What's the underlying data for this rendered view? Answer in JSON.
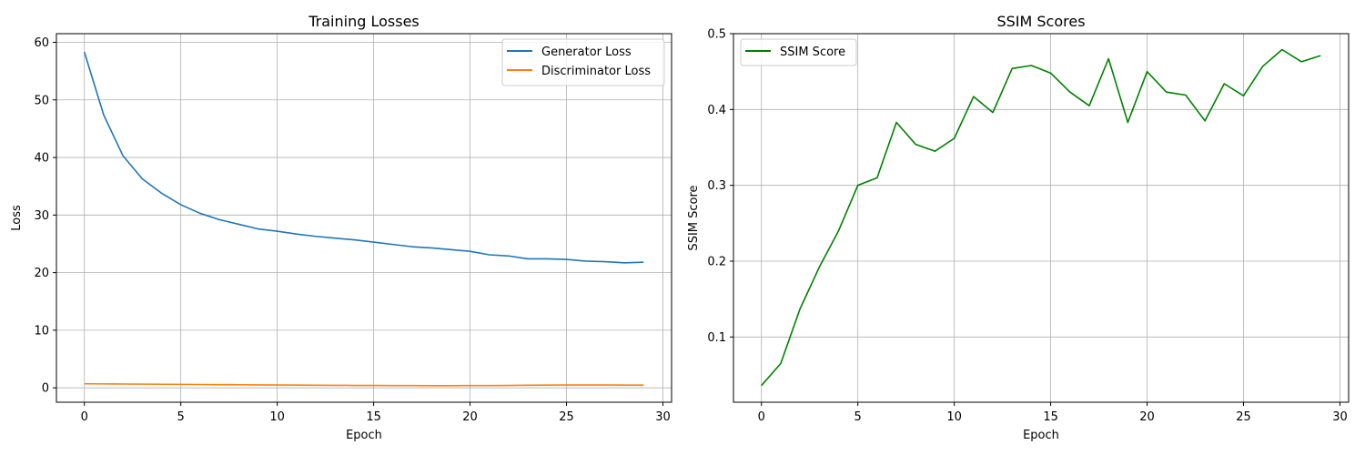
{
  "chart_data": [
    {
      "type": "line",
      "title": "Training Losses",
      "xlabel": "Epoch",
      "ylabel": "Loss",
      "xlim": [
        -1.45,
        30.45
      ],
      "ylim": [
        -2.5,
        61.5
      ],
      "xticks": [
        0,
        5,
        10,
        15,
        20,
        25,
        30
      ],
      "yticks": [
        0,
        10,
        20,
        30,
        40,
        50,
        60
      ],
      "grid": true,
      "legend_position": "top-right",
      "x": [
        0,
        1,
        2,
        3,
        4,
        5,
        6,
        7,
        8,
        9,
        10,
        11,
        12,
        13,
        14,
        15,
        16,
        17,
        18,
        19,
        20,
        21,
        22,
        23,
        24,
        25,
        26,
        27,
        28,
        29
      ],
      "series": [
        {
          "name": "Generator Loss",
          "color": "#1f77b4",
          "values": [
            58.3,
            47.4,
            40.3,
            36.3,
            33.8,
            31.8,
            30.3,
            29.2,
            28.4,
            27.6,
            27.2,
            26.7,
            26.3,
            26.0,
            25.7,
            25.3,
            24.9,
            24.5,
            24.3,
            24.0,
            23.7,
            23.1,
            22.9,
            22.4,
            22.4,
            22.3,
            22.0,
            21.9,
            21.7,
            21.8
          ]
        },
        {
          "name": "Discriminator Loss",
          "color": "#ff7f0e",
          "values": [
            0.7,
            0.68,
            0.66,
            0.64,
            0.62,
            0.6,
            0.58,
            0.56,
            0.54,
            0.52,
            0.5,
            0.48,
            0.46,
            0.44,
            0.42,
            0.41,
            0.4,
            0.39,
            0.38,
            0.38,
            0.39,
            0.4,
            0.42,
            0.45,
            0.48,
            0.5,
            0.5,
            0.49,
            0.48,
            0.47
          ]
        }
      ]
    },
    {
      "type": "line",
      "title": "SSIM Scores",
      "xlabel": "Epoch",
      "ylabel": "SSIM Score",
      "xlim": [
        -1.45,
        30.45
      ],
      "ylim": [
        0.014,
        0.5
      ],
      "xticks": [
        0,
        5,
        10,
        15,
        20,
        25,
        30
      ],
      "yticks": [
        0.1,
        0.2,
        0.3,
        0.4,
        0.5
      ],
      "grid": true,
      "legend_position": "top-left",
      "x": [
        0,
        1,
        2,
        3,
        4,
        5,
        6,
        7,
        8,
        9,
        10,
        11,
        12,
        13,
        14,
        15,
        16,
        17,
        18,
        19,
        20,
        21,
        22,
        23,
        24,
        25,
        26,
        27,
        28,
        29
      ],
      "series": [
        {
          "name": "SSIM Score",
          "color": "#008000",
          "values": [
            0.036,
            0.065,
            0.137,
            0.192,
            0.24,
            0.3,
            0.31,
            0.383,
            0.354,
            0.345,
            0.362,
            0.417,
            0.396,
            0.454,
            0.458,
            0.448,
            0.423,
            0.405,
            0.467,
            0.383,
            0.45,
            0.423,
            0.419,
            0.385,
            0.434,
            0.418,
            0.457,
            0.479,
            0.463,
            0.471
          ]
        }
      ]
    }
  ]
}
